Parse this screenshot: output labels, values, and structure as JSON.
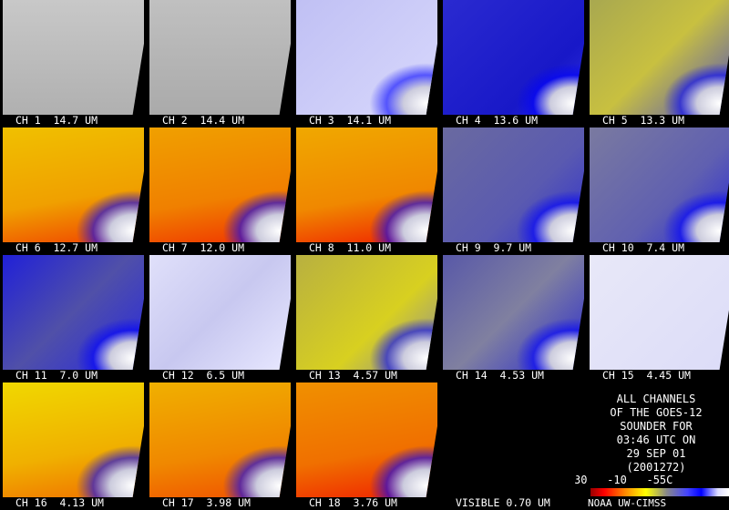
{
  "panels": [
    {
      "label": "CH 1  14.7 UM"
    },
    {
      "label": "CH 2  14.4 UM"
    },
    {
      "label": "CH 3  14.1 UM"
    },
    {
      "label": "CH 4  13.6 UM"
    },
    {
      "label": "CH 5  13.3 UM"
    },
    {
      "label": "CH 6  12.7 UM"
    },
    {
      "label": "CH 7  12.0 UM"
    },
    {
      "label": "CH 8  11.0 UM"
    },
    {
      "label": "CH 9  9.7 UM"
    },
    {
      "label": "CH 10  7.4 UM"
    },
    {
      "label": "CH 11  7.0 UM"
    },
    {
      "label": "CH 12  6.5 UM"
    },
    {
      "label": "CH 13  4.57 UM"
    },
    {
      "label": "CH 14  4.53 UM"
    },
    {
      "label": "CH 15  4.45 UM"
    },
    {
      "label": "CH 16  4.13 UM"
    },
    {
      "label": "CH 17  3.98 UM"
    },
    {
      "label": "CH 18  3.76 UM"
    },
    {
      "label": "VISIBLE 0.70 UM"
    }
  ],
  "legend": {
    "lines": [
      "ALL CHANNELS",
      "OF THE GOES-12",
      "SOUNDER FOR",
      "03:46 UTC ON",
      "29 SEP 01",
      "(2001272)"
    ],
    "scale": "30   -10   -55C",
    "credit": "NOAA UW-CIMSS"
  }
}
